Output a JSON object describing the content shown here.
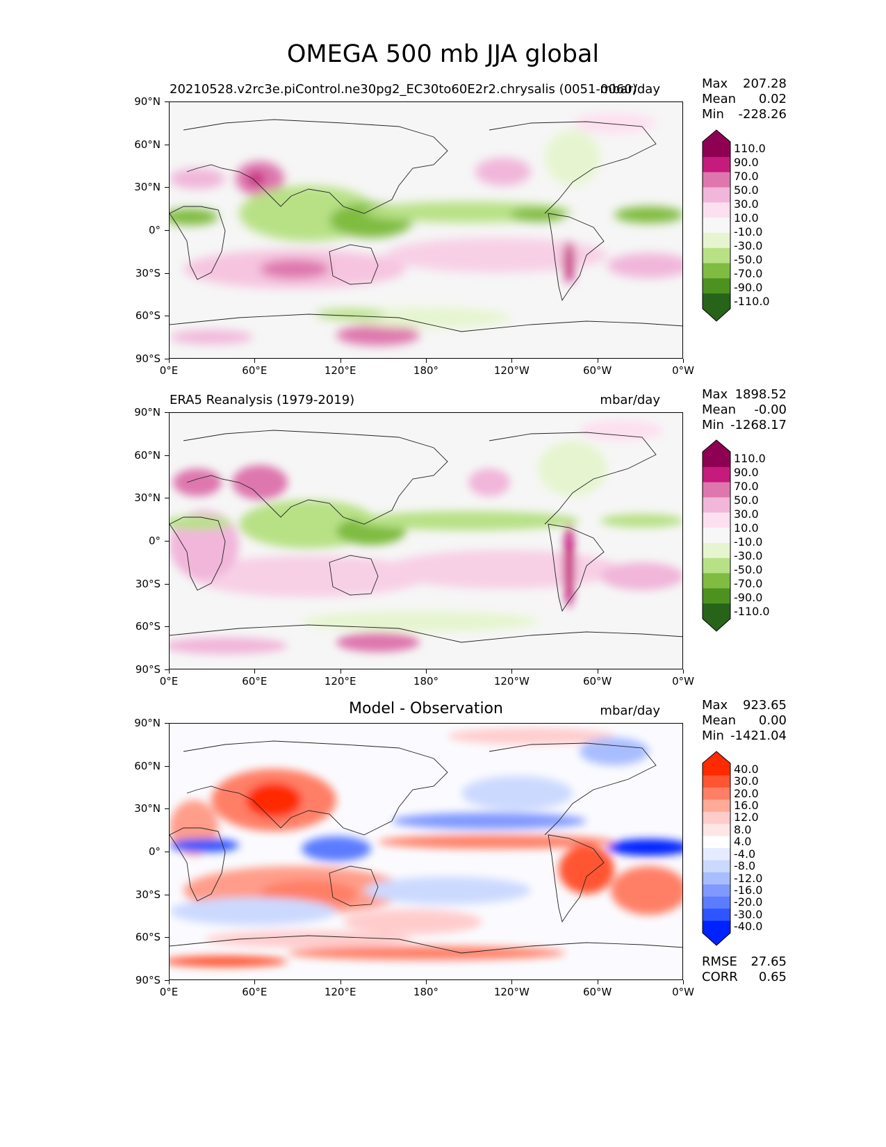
{
  "title": "OMEGA 500 mb JJA global",
  "lat_labels": [
    "90°N",
    "60°N",
    "30°N",
    "0°",
    "30°S",
    "60°S",
    "90°S"
  ],
  "lon_labels": [
    "0°E",
    "60°E",
    "120°E",
    "180°",
    "120°W",
    "60°W",
    "0°W"
  ],
  "panels": [
    {
      "title": "20210528.v2rc3e.piControl.ne30pg2_EC30to60E2r2.chrysalis (0051-0060)",
      "units": "mbar/day",
      "stats": {
        "max_label": "Max",
        "max": "207.28",
        "mean_label": "Mean",
        "mean": "0.02",
        "min_label": "Min",
        "min": "-228.26"
      }
    },
    {
      "title": "ERA5 Reanalysis (1979-2019)",
      "units": "mbar/day",
      "stats": {
        "max_label": "Max",
        "max": "1898.52",
        "mean_label": "Mean",
        "mean": "-0.00",
        "min_label": "Min",
        "min": "-1268.17"
      }
    },
    {
      "title": "Model - Observation",
      "units": "mbar/day",
      "stats": {
        "max_label": "Max",
        "max": "923.65",
        "mean_label": "Mean",
        "mean": "0.00",
        "min_label": "Min",
        "min": "-1421.04"
      }
    }
  ],
  "colorbar_main": {
    "labels": [
      "110.0",
      "90.0",
      "70.0",
      "50.0",
      "30.0",
      "10.0",
      "-10.0",
      "-30.0",
      "-50.0",
      "-70.0",
      "-90.0",
      "-110.0"
    ],
    "colors": [
      "#8e0152",
      "#c51b7d",
      "#de77ae",
      "#f1b6da",
      "#fde0ef",
      "#f7f7f7",
      "#e6f5d0",
      "#b8e186",
      "#7fbc41",
      "#4d9221",
      "#276419"
    ]
  },
  "colorbar_diff": {
    "labels": [
      "40.0",
      "30.0",
      "20.0",
      "16.0",
      "12.0",
      "8.0",
      "4.0",
      "-4.0",
      "-8.0",
      "-12.0",
      "-16.0",
      "-20.0",
      "-30.0",
      "-40.0"
    ],
    "colors": [
      "#ff2a00",
      "#ff5533",
      "#ff7f66",
      "#ffa999",
      "#ffcccc",
      "#ffe6e6",
      "#ffffff",
      "#e6ecff",
      "#ccd9ff",
      "#a8bdff",
      "#8099ff",
      "#5c7cff",
      "#2e55ff",
      "#0022ff"
    ]
  },
  "metrics": {
    "rmse_label": "RMSE",
    "rmse": "27.65",
    "corr_label": "CORR",
    "corr": "0.65"
  }
}
